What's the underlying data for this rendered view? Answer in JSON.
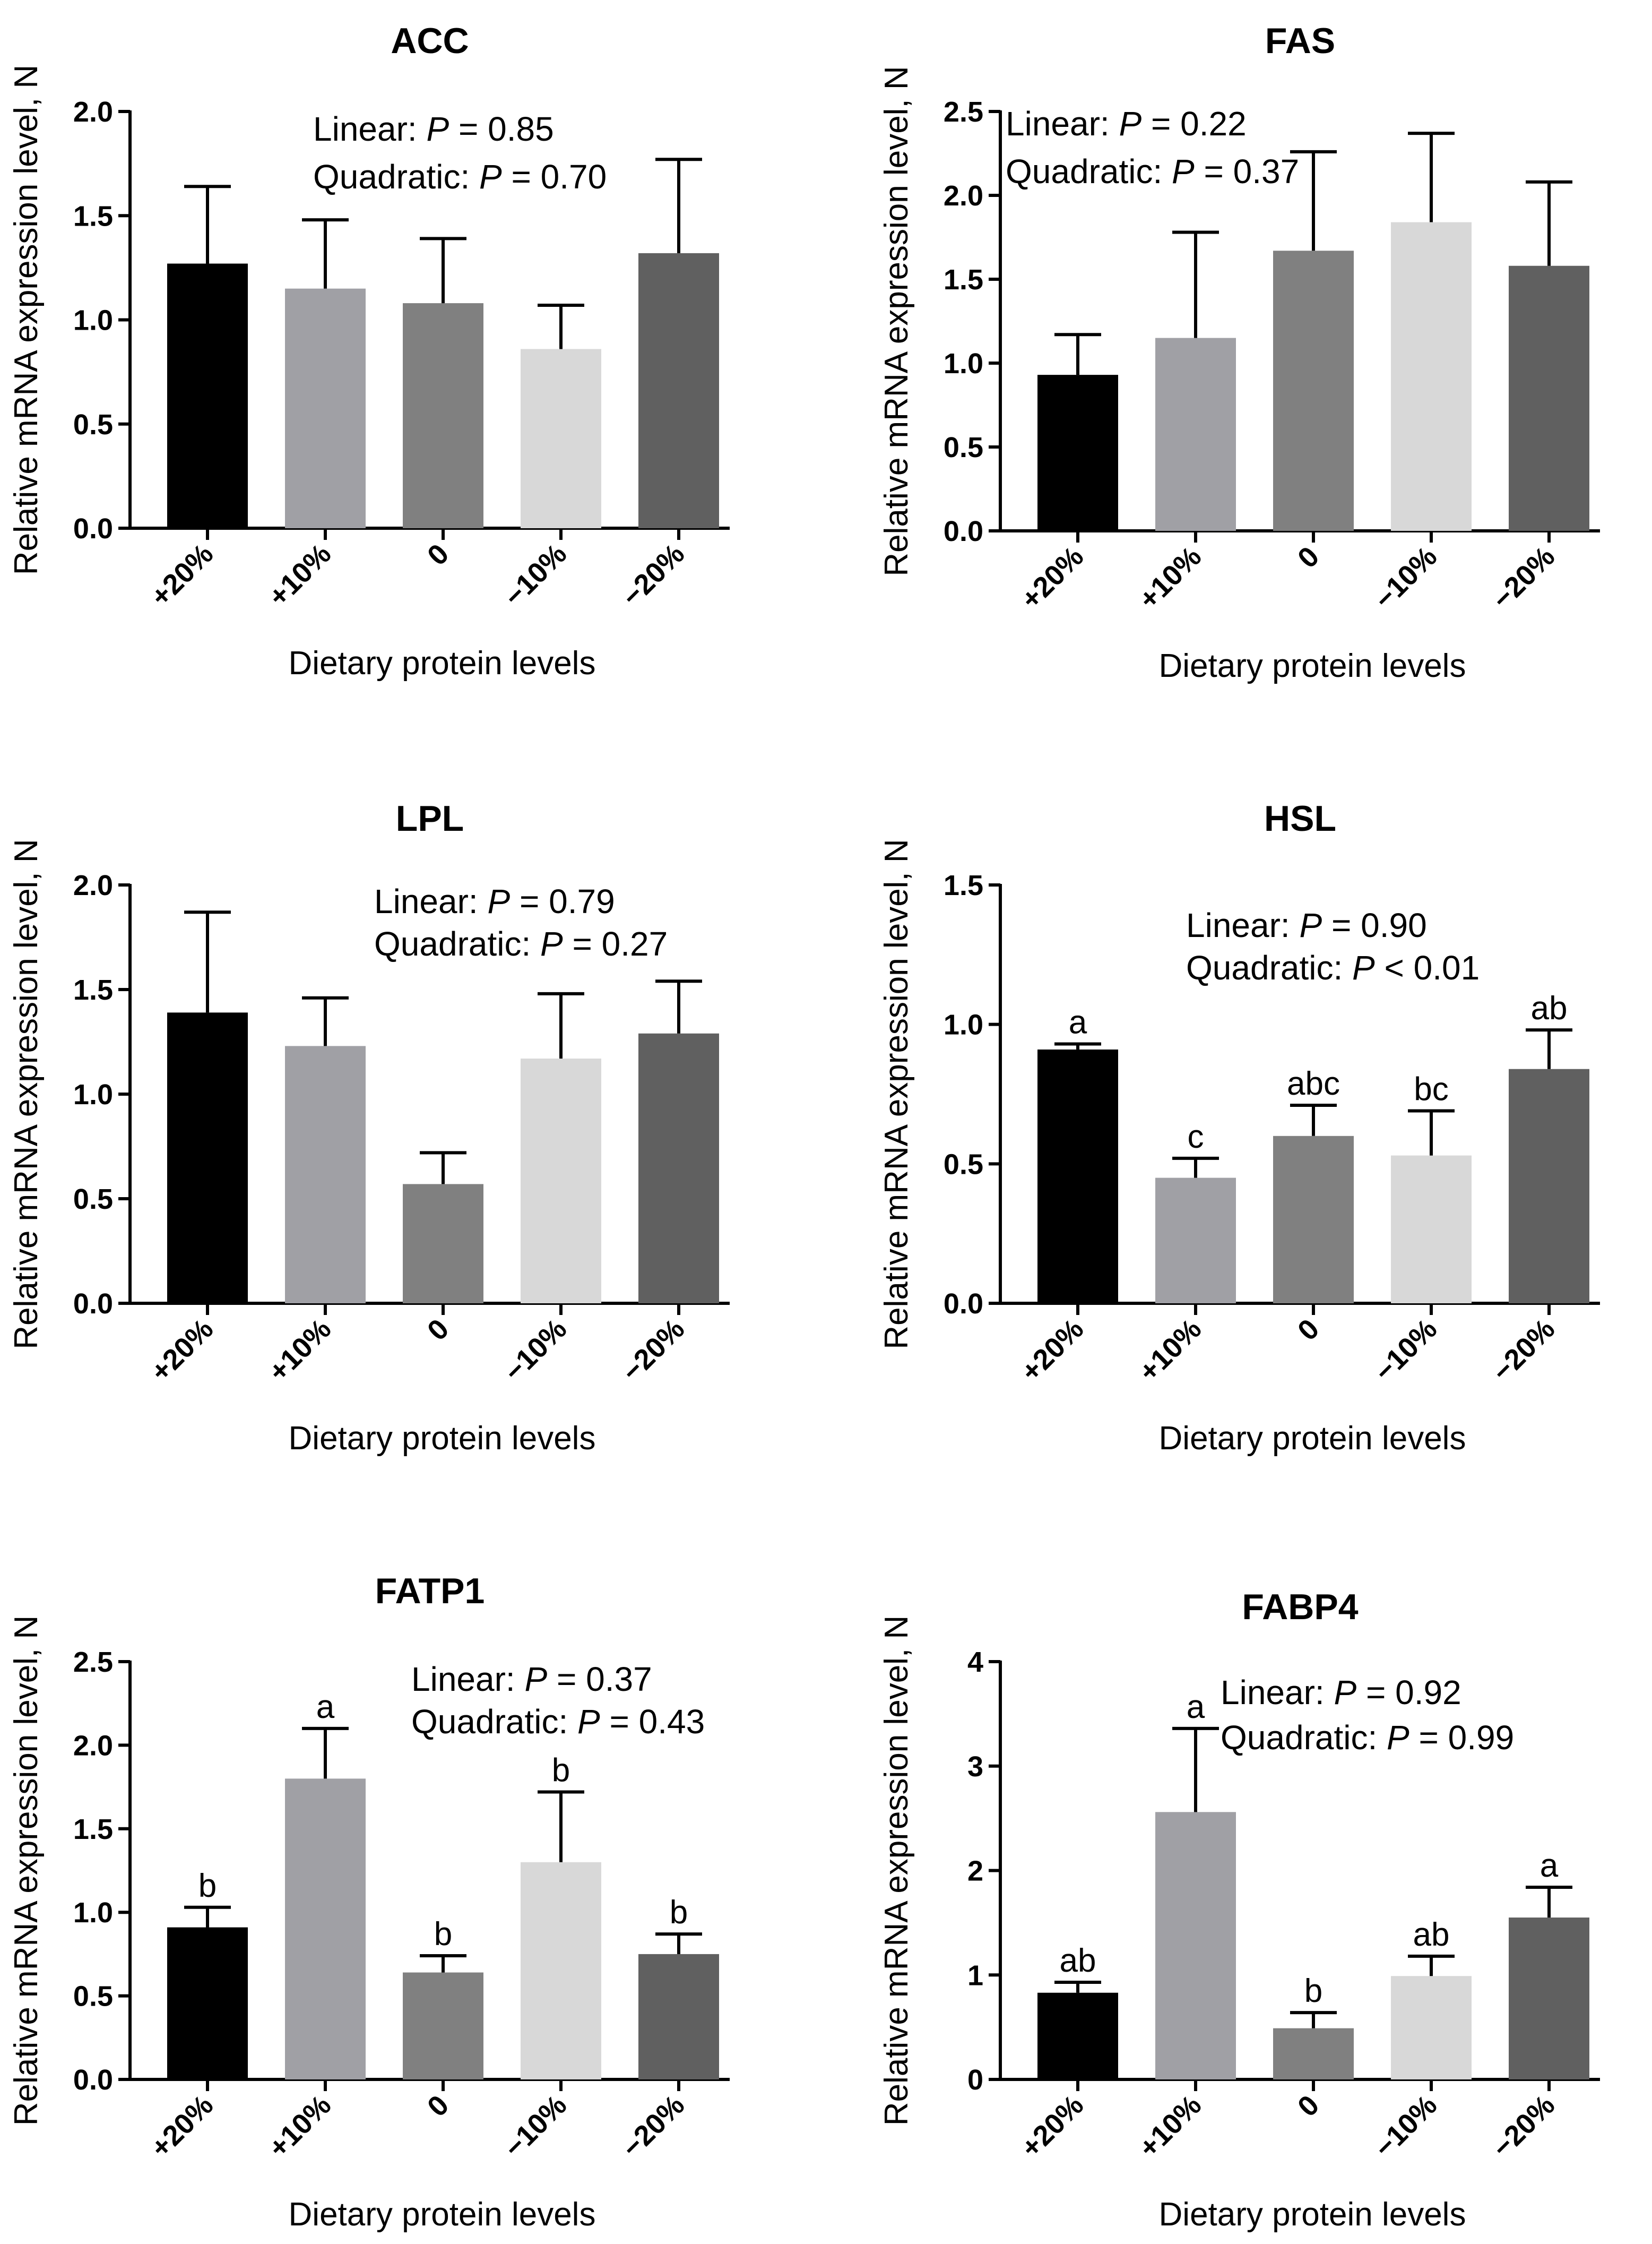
{
  "chart_data": [
    {
      "type": "bar",
      "title": "ACC",
      "categories": [
        "+20%",
        "+10%",
        "0",
        "−10%",
        "−20%"
      ],
      "values": [
        1.27,
        1.15,
        1.08,
        0.86,
        1.32
      ],
      "errors": [
        0.37,
        0.33,
        0.31,
        0.21,
        0.45
      ],
      "sig_letters": [
        "",
        "",
        "",
        "",
        ""
      ],
      "stats": {
        "linear": "Linear: ",
        "linear_val": " = 0.85",
        "quadratic": "Quadratic: ",
        "quadratic_val": " = 0.70",
        "p": "P"
      },
      "xlabel": "Dietary protein levels",
      "ylabel": "Relative mRNA expression level, N",
      "ylim": [
        0,
        2.0
      ],
      "ticks": [
        "0.0",
        "0.5",
        "1.0",
        "1.5",
        "2.0"
      ],
      "colors": [
        "#000000",
        "#a0a0a5",
        "#808080",
        "#d8d8d8",
        "#606060"
      ]
    },
    {
      "type": "bar",
      "title": "FAS",
      "categories": [
        "+20%",
        "+10%",
        "0",
        "−10%",
        "−20%"
      ],
      "values": [
        0.93,
        1.15,
        1.67,
        1.84,
        1.58
      ],
      "errors": [
        0.24,
        0.63,
        0.59,
        0.53,
        0.5
      ],
      "sig_letters": [
        "",
        "",
        "",
        "",
        ""
      ],
      "stats": {
        "linear": "Linear: ",
        "linear_val": " = 0.22",
        "quadratic": "Quadratic: ",
        "quadratic_val": " = 0.37",
        "p": "P"
      },
      "xlabel": "Dietary protein levels",
      "ylabel": "Relative mRNA expression level, N",
      "ylim": [
        0,
        2.5
      ],
      "ticks": [
        "0.0",
        "0.5",
        "1.0",
        "1.5",
        "2.0",
        "2.5"
      ],
      "colors": [
        "#000000",
        "#a0a0a5",
        "#808080",
        "#d8d8d8",
        "#606060"
      ]
    },
    {
      "type": "bar",
      "title": "LPL",
      "categories": [
        "+20%",
        "+10%",
        "0",
        "−10%",
        "−20%"
      ],
      "values": [
        1.39,
        1.23,
        0.57,
        1.17,
        1.29
      ],
      "errors": [
        0.48,
        0.23,
        0.15,
        0.31,
        0.25
      ],
      "sig_letters": [
        "",
        "",
        "",
        "",
        ""
      ],
      "stats": {
        "linear": "Linear: ",
        "linear_val": " = 0.79",
        "quadratic": "Quadratic: ",
        "quadratic_val": " = 0.27",
        "p": "P"
      },
      "xlabel": "Dietary protein levels",
      "ylabel": "Relative mRNA expression level, N",
      "ylim": [
        0,
        2.0
      ],
      "ticks": [
        "0.0",
        "0.5",
        "1.0",
        "1.5",
        "2.0"
      ],
      "colors": [
        "#000000",
        "#a0a0a5",
        "#808080",
        "#d8d8d8",
        "#606060"
      ]
    },
    {
      "type": "bar",
      "title": "HSL",
      "categories": [
        "+20%",
        "+10%",
        "0",
        "−10%",
        "−20%"
      ],
      "values": [
        0.91,
        0.45,
        0.6,
        0.53,
        0.84
      ],
      "errors": [
        0.02,
        0.07,
        0.11,
        0.16,
        0.14
      ],
      "sig_letters": [
        "a",
        "c",
        "abc",
        "bc",
        "ab"
      ],
      "stats": {
        "linear": "Linear: ",
        "linear_val": " = 0.90",
        "quadratic": "Quadratic: ",
        "quadratic_val": " < 0.01",
        "p": "P"
      },
      "xlabel": "Dietary protein levels",
      "ylabel": "Relative mRNA expression level, N",
      "ylim": [
        0,
        1.5
      ],
      "ticks": [
        "0.0",
        "0.5",
        "1.0",
        "1.5"
      ],
      "colors": [
        "#000000",
        "#a0a0a5",
        "#808080",
        "#d8d8d8",
        "#606060"
      ]
    },
    {
      "type": "bar",
      "title": "FATP1",
      "categories": [
        "+20%",
        "+10%",
        "0",
        "−10%",
        "−20%"
      ],
      "values": [
        0.91,
        1.8,
        0.64,
        1.3,
        0.75
      ],
      "errors": [
        0.12,
        0.3,
        0.1,
        0.42,
        0.12
      ],
      "sig_letters": [
        "b",
        "a",
        "b",
        "b",
        "b"
      ],
      "stats": {
        "linear": "Linear: ",
        "linear_val": " = 0.37",
        "quadratic": "Quadratic: ",
        "quadratic_val": " = 0.43",
        "p": "P"
      },
      "xlabel": "Dietary protein levels",
      "ylabel": "Relative mRNA expression level, N",
      "ylim": [
        0,
        2.5
      ],
      "ticks": [
        "0.0",
        "0.5",
        "1.0",
        "1.5",
        "2.0",
        "2.5"
      ],
      "colors": [
        "#000000",
        "#a0a0a5",
        "#808080",
        "#d8d8d8",
        "#606060"
      ]
    },
    {
      "type": "bar",
      "title": "FABP4",
      "categories": [
        "+20%",
        "+10%",
        "0",
        "−10%",
        "−20%"
      ],
      "values": [
        0.83,
        2.56,
        0.49,
        0.99,
        1.55
      ],
      "errors": [
        0.1,
        0.8,
        0.15,
        0.19,
        0.29
      ],
      "sig_letters": [
        "ab",
        "a",
        "b",
        "ab",
        "a"
      ],
      "stats": {
        "linear": "Linear: ",
        "linear_val": " = 0.92",
        "quadratic": "Quadratic: ",
        "quadratic_val": " = 0.99",
        "p": "P"
      },
      "xlabel": "Dietary protein levels",
      "ylabel": "Relative mRNA expression level, N",
      "ylim": [
        0,
        4
      ],
      "ticks": [
        "0",
        "1",
        "2",
        "3",
        "4"
      ],
      "colors": [
        "#000000",
        "#a0a0a5",
        "#808080",
        "#d8d8d8",
        "#606060"
      ]
    }
  ]
}
